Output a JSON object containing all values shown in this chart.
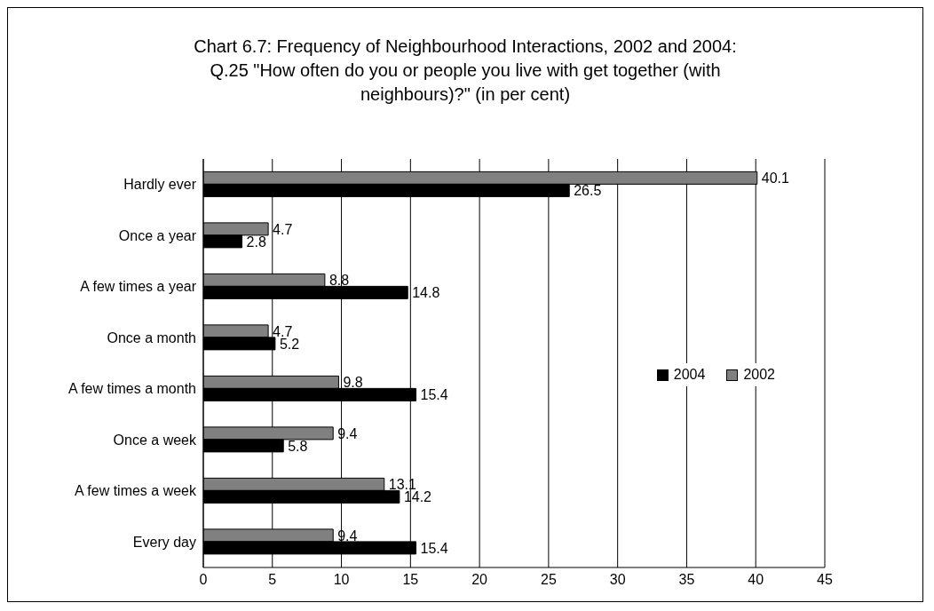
{
  "chart_data": {
    "type": "bar",
    "orientation": "horizontal",
    "title": "Chart 6.7: Frequency of Neighbourhood Interactions, 2002 and 2004: Q.25 \"How often do you or people you live with get together (with neighbours)?\" (in per cent)",
    "categories": [
      "Hardly ever",
      "Once a year",
      "A few times a year",
      "Once a month",
      "A few times a month",
      "Once a week",
      "A few times a week",
      "Every day"
    ],
    "series": [
      {
        "name": "2002",
        "color": "#808080",
        "values": [
          40.1,
          4.7,
          8.8,
          4.7,
          9.8,
          9.4,
          13.1,
          9.4
        ]
      },
      {
        "name": "2004",
        "color": "#000000",
        "values": [
          26.5,
          2.8,
          14.8,
          5.2,
          15.4,
          5.8,
          14.2,
          15.4
        ]
      }
    ],
    "xlim": [
      0,
      45
    ],
    "xticks": [
      0,
      5,
      10,
      15,
      20,
      25,
      30,
      35,
      40,
      45
    ],
    "grid": "x",
    "legend": "right",
    "data_labels": true
  }
}
